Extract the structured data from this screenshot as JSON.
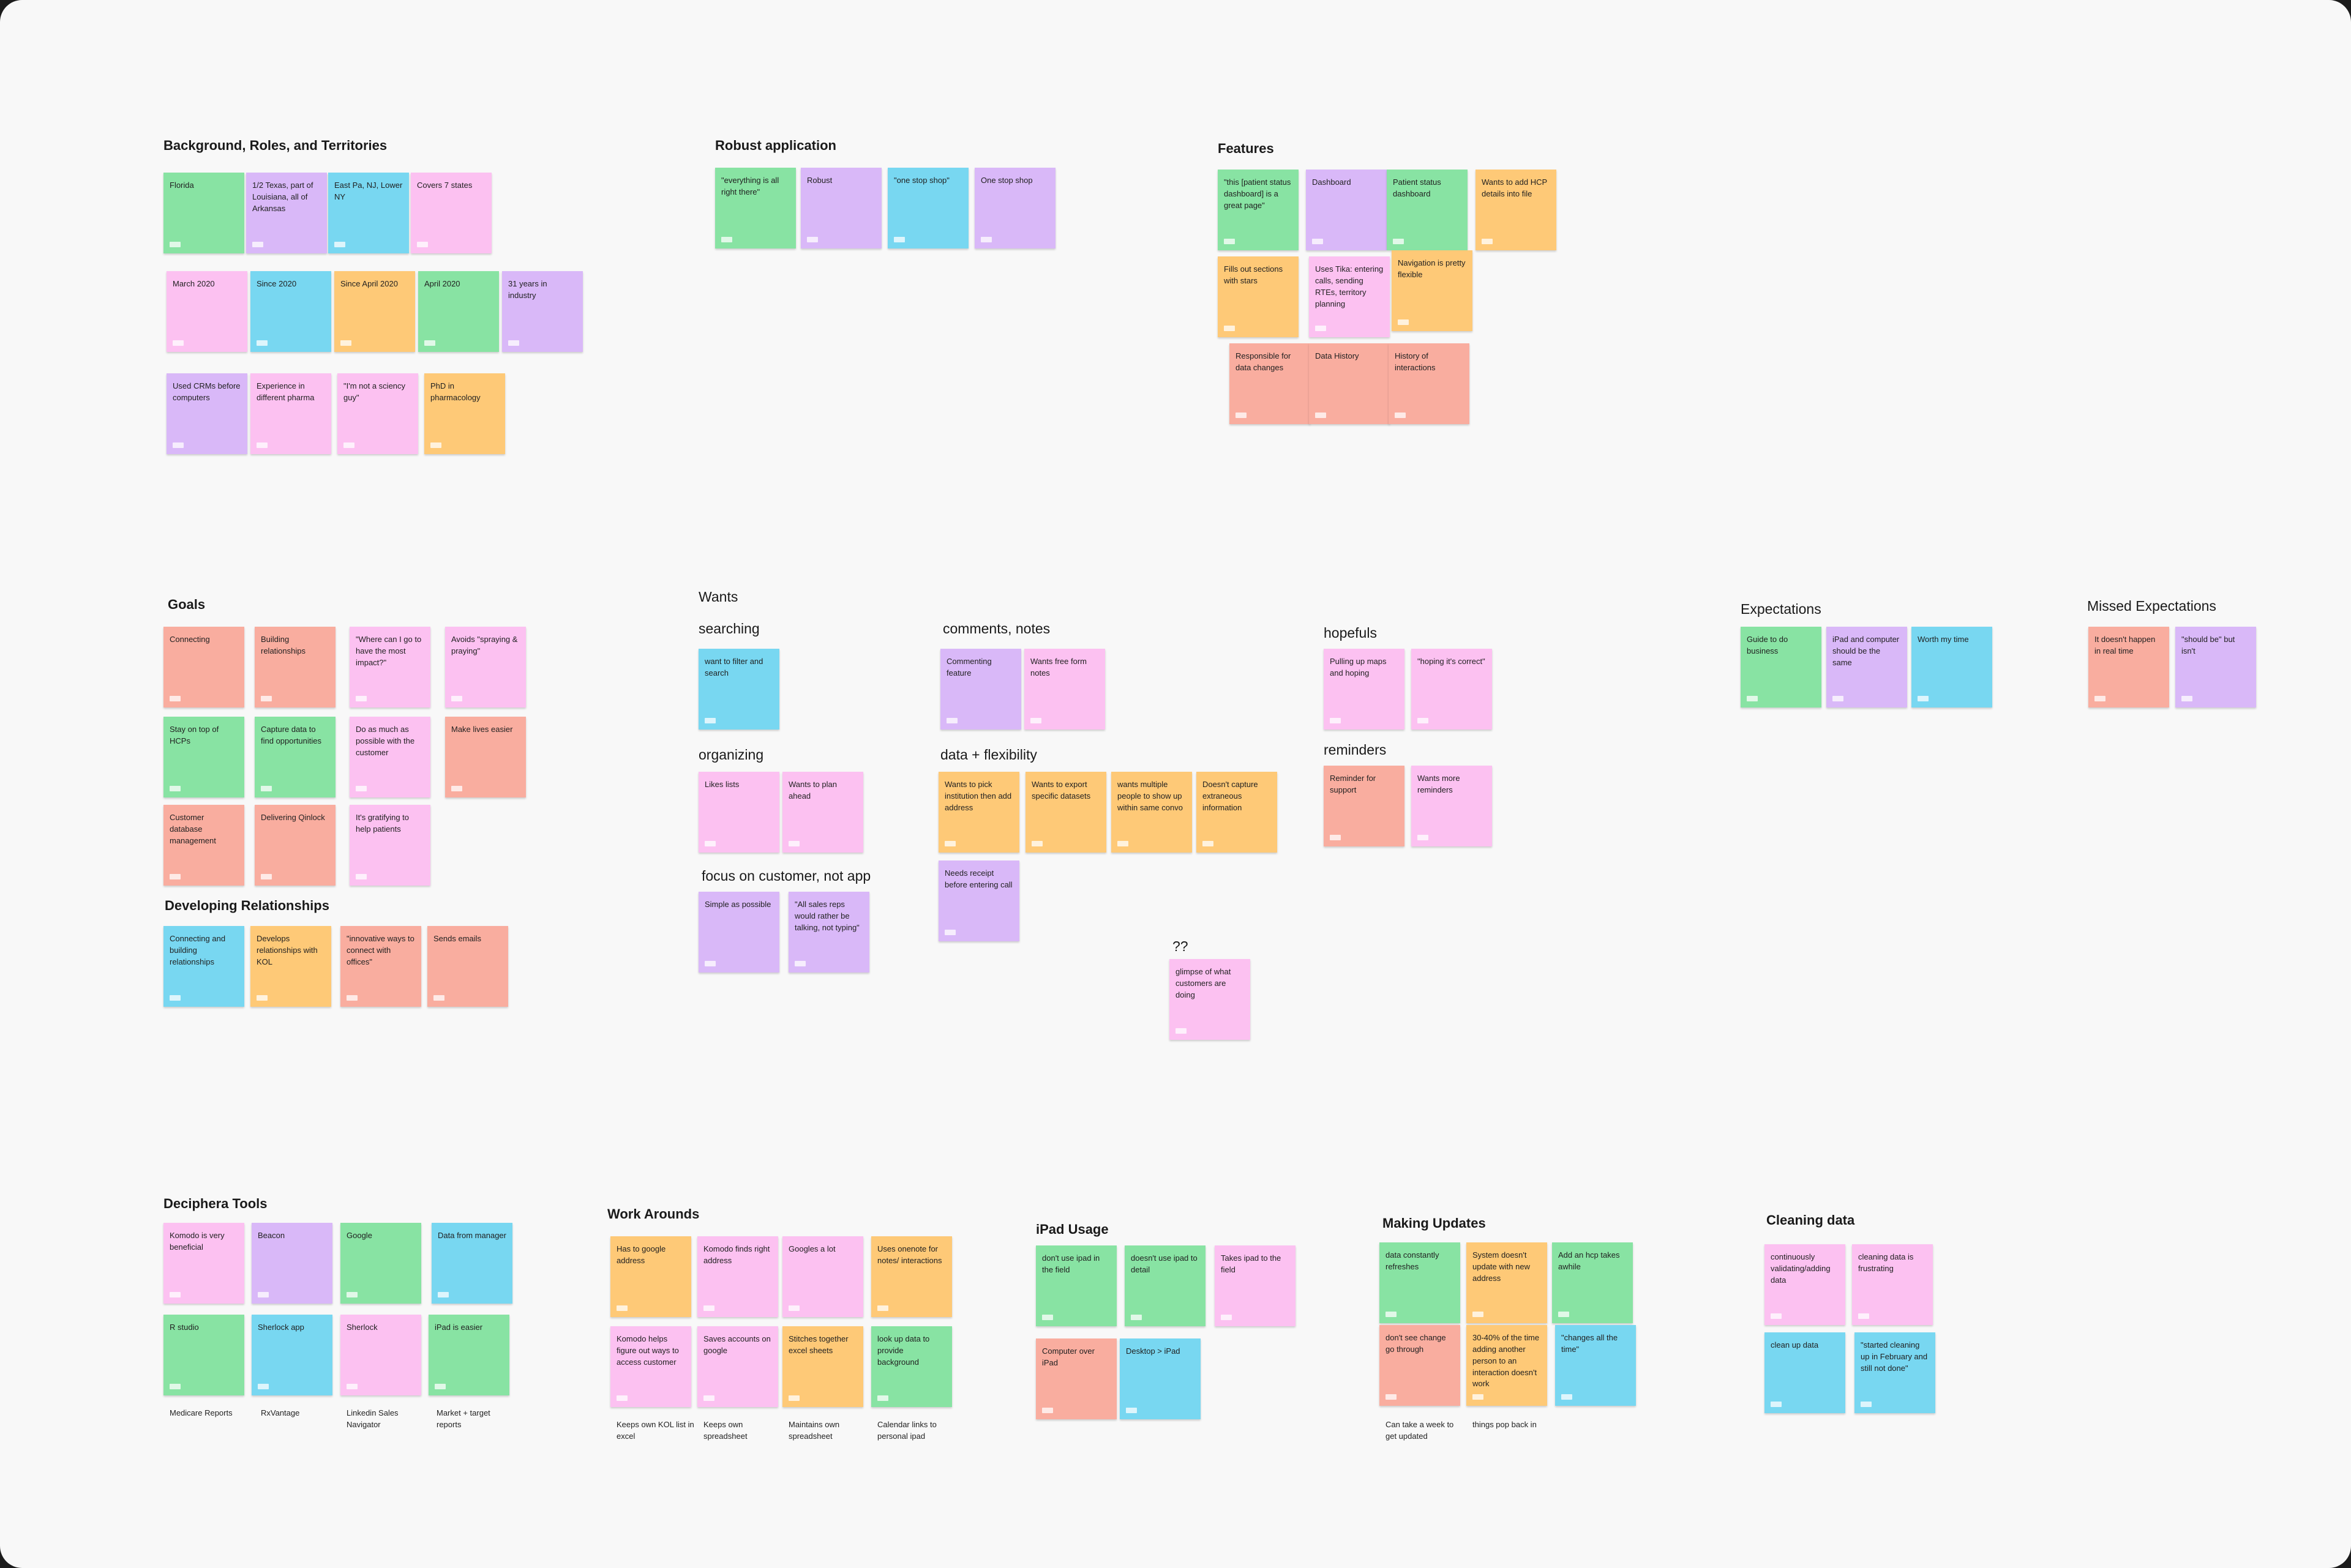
{
  "groups": [
    {
      "title": "Background, Roles, and Territories",
      "notes": [
        {
          "text": "Florida",
          "color": "#88e3a3"
        },
        {
          "text": "1/2 Texas, part of Louisiana, all of Arkansas",
          "color": "#d9b8f8"
        },
        {
          "text": "East Pa, NJ, Lower NY",
          "color": "#78d7f1"
        },
        {
          "text": "Covers 7 states",
          "color": "#fcc1f1"
        },
        {
          "text": "March 2020",
          "color": "#fcc1f1"
        },
        {
          "text": "Since 2020",
          "color": "#78d7f1"
        },
        {
          "text": "Since April 2020",
          "color": "#fec977"
        },
        {
          "text": "April 2020",
          "color": "#88e3a3"
        },
        {
          "text": "31 years in industry",
          "color": "#d9b8f8"
        },
        {
          "text": "Used CRMs before computers",
          "color": "#d9b8f8"
        },
        {
          "text": "Experience in different pharma",
          "color": "#fcc1f1"
        },
        {
          "text": "\"I'm not a sciency guy\"",
          "color": "#fcc1f1"
        },
        {
          "text": "PhD in pharmacology",
          "color": "#fec977"
        }
      ]
    },
    {
      "title": "Robust application",
      "notes": [
        {
          "text": "\"everything is all right there\"",
          "color": "#88e3a3"
        },
        {
          "text": "Robust",
          "color": "#d9b8f8"
        },
        {
          "text": "\"one stop shop\"",
          "color": "#78d7f1"
        },
        {
          "text": "One stop shop",
          "color": "#d9b8f8"
        }
      ]
    },
    {
      "title": "Features",
      "notes": [
        {
          "text": "\"this [patient status dashboard] is a great page\"",
          "color": "#88e3a3"
        },
        {
          "text": "Dashboard",
          "color": "#d9b8f8"
        },
        {
          "text": "Patient status dashboard",
          "color": "#88e3a3"
        },
        {
          "text": "Wants to add HCP details into file",
          "color": "#fec977"
        },
        {
          "text": "Fills out sections with stars",
          "color": "#fec977"
        },
        {
          "text": "Uses Tika: entering calls, sending RTEs, territory planning",
          "color": "#fcc1f1"
        },
        {
          "text": "Navigation is pretty flexible",
          "color": "#fec977"
        },
        {
          "text": "Responsible for data changes",
          "color": "#f9ad9f"
        },
        {
          "text": "Data History",
          "color": "#f9ad9f"
        },
        {
          "text": "History of interactions",
          "color": "#f9ad9f"
        }
      ]
    },
    {
      "title": "Goals",
      "notes": [
        {
          "text": "Connecting",
          "color": "#f9ad9f"
        },
        {
          "text": "Building relationships",
          "color": "#f9ad9f"
        },
        {
          "text": "\"Where can I go to have the most impact?\"",
          "color": "#fcc1f1"
        },
        {
          "text": "Avoids \"spraying & praying\"",
          "color": "#fcc1f1"
        },
        {
          "text": "Stay on top of HCPs",
          "color": "#88e3a3"
        },
        {
          "text": "Capture data to find opportunities",
          "color": "#88e3a3"
        },
        {
          "text": "Do as much as possible with the customer",
          "color": "#fcc1f1"
        },
        {
          "text": "Make lives easier",
          "color": "#f9ad9f"
        },
        {
          "text": "Customer database management",
          "color": "#f9ad9f"
        },
        {
          "text": "Delivering Qinlock",
          "color": "#f9ad9f"
        },
        {
          "text": "It's gratifying to help patients",
          "color": "#fcc1f1"
        }
      ]
    },
    {
      "title": "Developing Relationships",
      "notes": [
        {
          "text": "Connecting and building relationships",
          "color": "#78d7f1"
        },
        {
          "text": "Develops relationships with KOL",
          "color": "#fec977"
        },
        {
          "text": "\"innovative ways to connect with offices\"",
          "color": "#f9ad9f"
        },
        {
          "text": "Sends emails",
          "color": "#f9ad9f"
        }
      ]
    },
    {
      "title": "Wants",
      "notes": [],
      "subgroups": [
        {
          "title": "searching",
          "notes": [
            {
              "text": "want to filter and search",
              "color": "#78d7f1"
            }
          ]
        },
        {
          "title": "organizing",
          "notes": [
            {
              "text": "Likes lists",
              "color": "#fcc1f1"
            },
            {
              "text": "Wants to plan ahead",
              "color": "#fcc1f1"
            }
          ]
        },
        {
          "title": "focus on customer, not app",
          "notes": [
            {
              "text": "Simple as possible",
              "color": "#d9b8f8"
            },
            {
              "text": "\"All sales reps would rather be talking, not typing\"",
              "color": "#d9b8f8"
            }
          ]
        },
        {
          "title": "comments, notes",
          "notes": [
            {
              "text": "Commenting feature",
              "color": "#d9b8f8"
            },
            {
              "text": "Wants free form notes",
              "color": "#fcc1f1"
            }
          ]
        },
        {
          "title": "data + flexibility",
          "notes": [
            {
              "text": "Wants to pick institution then add address",
              "color": "#fec977"
            },
            {
              "text": "Wants to export specific datasets",
              "color": "#fec977"
            },
            {
              "text": "wants multiple people to show up within same convo",
              "color": "#fec977"
            },
            {
              "text": "Doesn't capture extraneous information",
              "color": "#fec977"
            },
            {
              "text": "Needs receipt before entering call",
              "color": "#d9b8f8"
            }
          ]
        },
        {
          "title": "hopefuls",
          "notes": [
            {
              "text": "Pulling up maps and hoping",
              "color": "#fcc1f1"
            },
            {
              "text": "\"hoping it's correct\"",
              "color": "#fcc1f1"
            }
          ]
        },
        {
          "title": "reminders",
          "notes": [
            {
              "text": "Reminder for support",
              "color": "#f9ad9f"
            },
            {
              "text": "Wants more reminders",
              "color": "#fcc1f1"
            }
          ]
        },
        {
          "title": "??",
          "notes": [
            {
              "text": "glimpse of what customers are doing",
              "color": "#fcc1f1"
            }
          ]
        }
      ]
    },
    {
      "title": "Expectations",
      "notes": [
        {
          "text": "Guide to do business",
          "color": "#88e3a3"
        },
        {
          "text": "iPad and computer should be the same",
          "color": "#d9b8f8"
        },
        {
          "text": "Worth my time",
          "color": "#78d7f1"
        }
      ]
    },
    {
      "title": "Missed Expectations",
      "notes": [
        {
          "text": "It doesn't happen in real time",
          "color": "#f9ad9f"
        },
        {
          "text": "\"should be\" but isn't",
          "color": "#d9b8f8"
        }
      ]
    },
    {
      "title": "Deciphera Tools",
      "notes": [
        {
          "text": "Komodo is very beneficial",
          "color": "#fcc1f1"
        },
        {
          "text": "Beacon",
          "color": "#d9b8f8"
        },
        {
          "text": "Google",
          "color": "#88e3a3"
        },
        {
          "text": "Data from manager",
          "color": "#78d7f1"
        },
        {
          "text": "R studio",
          "color": "#88e3a3"
        },
        {
          "text": "Sherlock app",
          "color": "#78d7f1"
        },
        {
          "text": "Sherlock",
          "color": "#fcc1f1"
        },
        {
          "text": "iPad is easier",
          "color": "#88e3a3"
        }
      ],
      "captions": [
        "Medicare Reports",
        "RxVantage",
        "Linkedin Sales Navigator",
        "Market + target reports"
      ]
    },
    {
      "title": "Work Arounds",
      "notes": [
        {
          "text": "Has to google address",
          "color": "#fec977"
        },
        {
          "text": "Komodo finds right address",
          "color": "#fcc1f1"
        },
        {
          "text": "Googles a lot",
          "color": "#fcc1f1"
        },
        {
          "text": "Uses onenote for notes/ interactions",
          "color": "#fec977"
        },
        {
          "text": "Komodo helps figure out ways to access customer",
          "color": "#fcc1f1"
        },
        {
          "text": "Saves accounts on google",
          "color": "#fcc1f1"
        },
        {
          "text": "Stitches together excel sheets",
          "color": "#fec977"
        },
        {
          "text": "look up data to provide background",
          "color": "#88e3a3"
        }
      ],
      "captions": [
        "Keeps own KOL list in excel",
        "Keeps own spreadsheet",
        "Maintains own spreadsheet",
        "Calendar links to personal ipad"
      ]
    },
    {
      "title": "iPad Usage",
      "notes": [
        {
          "text": "don't use ipad in the field",
          "color": "#88e3a3"
        },
        {
          "text": "doesn't use ipad to detail",
          "color": "#88e3a3"
        },
        {
          "text": "Takes ipad to the field",
          "color": "#fcc1f1"
        },
        {
          "text": "Computer over iPad",
          "color": "#f9ad9f"
        },
        {
          "text": "Desktop > iPad",
          "color": "#78d7f1"
        }
      ]
    },
    {
      "title": "Making Updates",
      "notes": [
        {
          "text": "data constantly refreshes",
          "color": "#88e3a3"
        },
        {
          "text": "System doesn't update with new address",
          "color": "#fec977"
        },
        {
          "text": "Add an hcp takes awhile",
          "color": "#88e3a3"
        },
        {
          "text": "don't see change go through",
          "color": "#f9ad9f"
        },
        {
          "text": "30-40% of the time adding another person to an interaction doesn't work",
          "color": "#fec977"
        },
        {
          "text": "\"changes all the time\"",
          "color": "#78d7f1"
        }
      ],
      "captions": [
        "Can take a week to get updated",
        "things pop back in"
      ]
    },
    {
      "title": "Cleaning data",
      "notes": [
        {
          "text": "continuously validating/adding data",
          "color": "#fcc1f1"
        },
        {
          "text": "cleaning data is frustrating",
          "color": "#fcc1f1"
        },
        {
          "text": "clean up data",
          "color": "#78d7f1"
        },
        {
          "text": "\"started cleaning up in February and still not done\"",
          "color": "#78d7f1"
        }
      ]
    }
  ]
}
